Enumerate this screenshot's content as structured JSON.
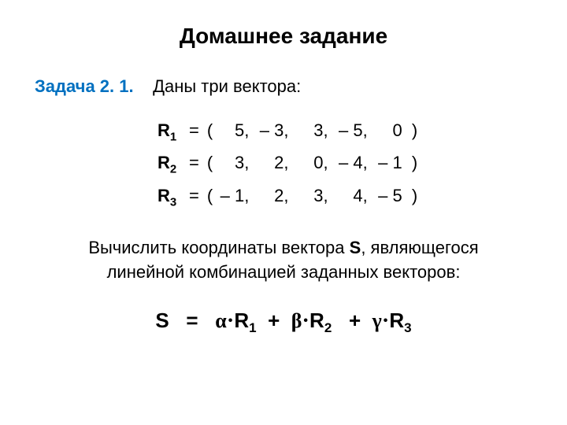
{
  "title": "Домашнее задание",
  "problem": {
    "number": "Задача 2. 1.",
    "text": "Даны три вектора:"
  },
  "vectors": {
    "r1": {
      "label": "R",
      "sub": "1",
      "vals": [
        "5",
        "– 3",
        "3",
        "– 5",
        "0"
      ]
    },
    "r2": {
      "label": "R",
      "sub": "2",
      "vals": [
        "3",
        "2",
        "0",
        "– 4",
        "– 1"
      ]
    },
    "r3": {
      "label": "R",
      "sub": "3",
      "vals": [
        "– 1",
        "2",
        "3",
        "4",
        "– 5"
      ]
    }
  },
  "description": {
    "line1_a": "Вычислить координаты вектора ",
    "line1_b": "S",
    "line1_c": ",  являющегося",
    "line2": "линейной комбинацией заданных векторов:"
  },
  "formula": {
    "S": "S",
    "eq": "=",
    "alpha": "α",
    "R1": "R",
    "R1sub": "1",
    "plus": "+",
    "beta": "β",
    "R2": "R",
    "R2sub": "2",
    "gamma": "γ",
    "R3": "R",
    "R3sub": "3"
  },
  "colors": {
    "problem_num": "#0070c0",
    "text": "#000000",
    "background": "#ffffff"
  }
}
